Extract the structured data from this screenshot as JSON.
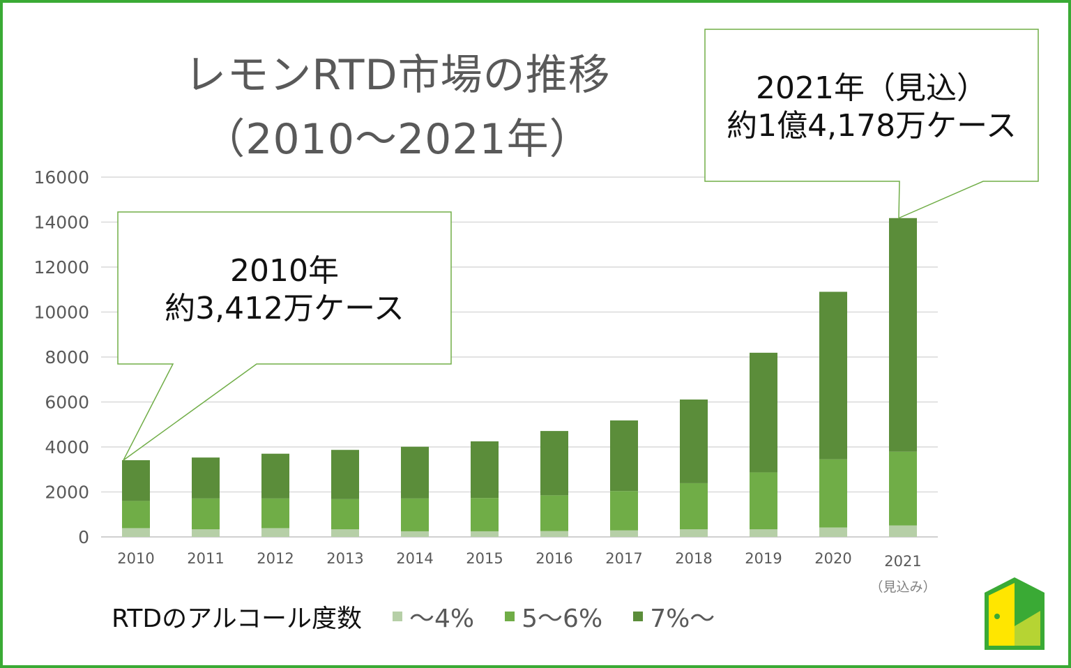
{
  "title": {
    "line1": "レモンRTD市場の推移",
    "line2": "（2010～2021年）"
  },
  "callouts": [
    {
      "line1": "2010年",
      "line2": "約3,412万ケース"
    },
    {
      "line1": "2021年（見込）",
      "line2": "約1億4,178万ケース"
    }
  ],
  "legend_title": "RTDのアルコール度数",
  "chart_data": {
    "type": "bar",
    "stacked": true,
    "title": "レモンRTD市場の推移（2010～2021年）",
    "categories": [
      "2010",
      "2011",
      "2012",
      "2013",
      "2014",
      "2015",
      "2016",
      "2017",
      "2018",
      "2019",
      "2020",
      "2021"
    ],
    "category_note": {
      "2021": "（見込み）"
    },
    "ylim": [
      0,
      16000
    ],
    "yticks": [
      0,
      2000,
      4000,
      6000,
      8000,
      10000,
      12000,
      14000,
      16000
    ],
    "grid": true,
    "legend_position": "bottom",
    "series": [
      {
        "name": "～4%",
        "color": "#b6cfa7",
        "values": [
          390,
          340,
          390,
          340,
          250,
          250,
          260,
          290,
          340,
          340,
          420,
          510
        ]
      },
      {
        "name": "5～6%",
        "color": "#70ad47",
        "values": [
          1210,
          1370,
          1320,
          1340,
          1460,
          1480,
          1590,
          1750,
          2050,
          2530,
          3030,
          3280
        ]
      },
      {
        "name": "7%～",
        "color": "#5b8d3a",
        "values": [
          1812,
          1820,
          1990,
          2190,
          2300,
          2520,
          2860,
          3140,
          3720,
          5320,
          7450,
          10388
        ]
      }
    ]
  },
  "colors": {
    "frame": "#3aaa35",
    "callout_border": "#70ad47",
    "grid": "#d9d9d9",
    "axis_text": "#595959"
  }
}
